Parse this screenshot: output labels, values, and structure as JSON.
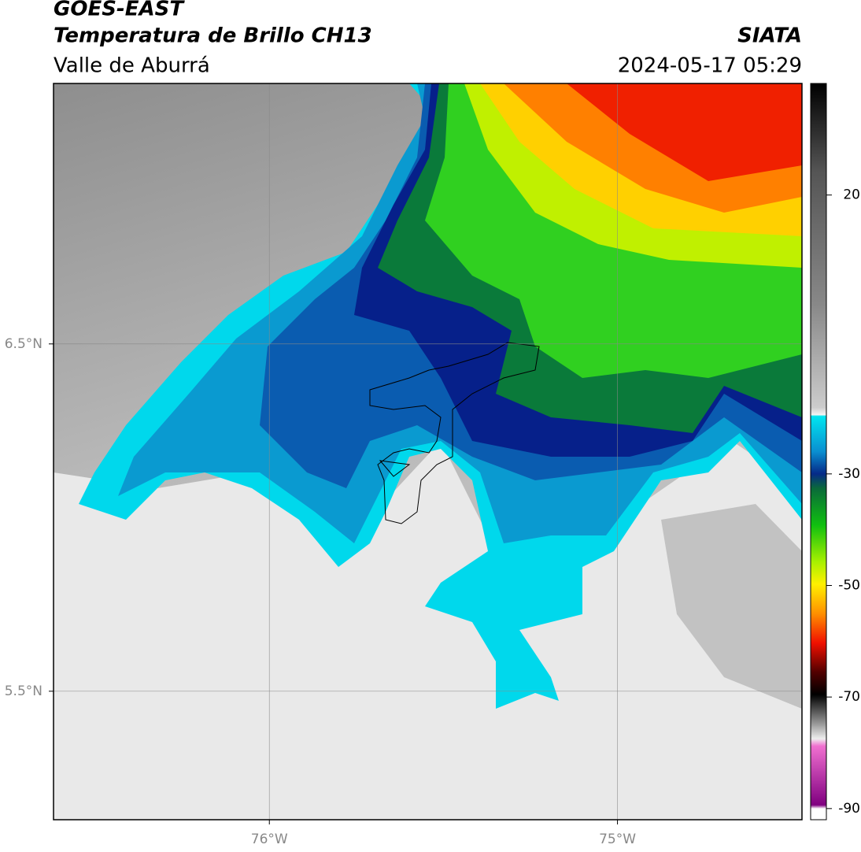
{
  "header": {
    "title": "GOES-EAST",
    "subtitle": "Temperatura de Brillo CH13",
    "region": "Valle de Aburrá",
    "source": "SIATA",
    "datetime": "2024-05-17 05:29"
  },
  "map": {
    "xlim": [
      -76.62,
      -74.47
    ],
    "ylim": [
      5.13,
      7.25
    ],
    "xticks": [
      {
        "value": -76,
        "label": "76°W"
      },
      {
        "value": -75,
        "label": "75°W"
      }
    ],
    "yticks": [
      {
        "value": 6.5,
        "label": "6.5°N"
      },
      {
        "value": 5.5,
        "label": "5.5°N"
      }
    ]
  },
  "colorbar": {
    "lim": [
      -92,
      40
    ],
    "ticks": [
      20,
      -30,
      -50,
      -70,
      -90
    ]
  }
}
